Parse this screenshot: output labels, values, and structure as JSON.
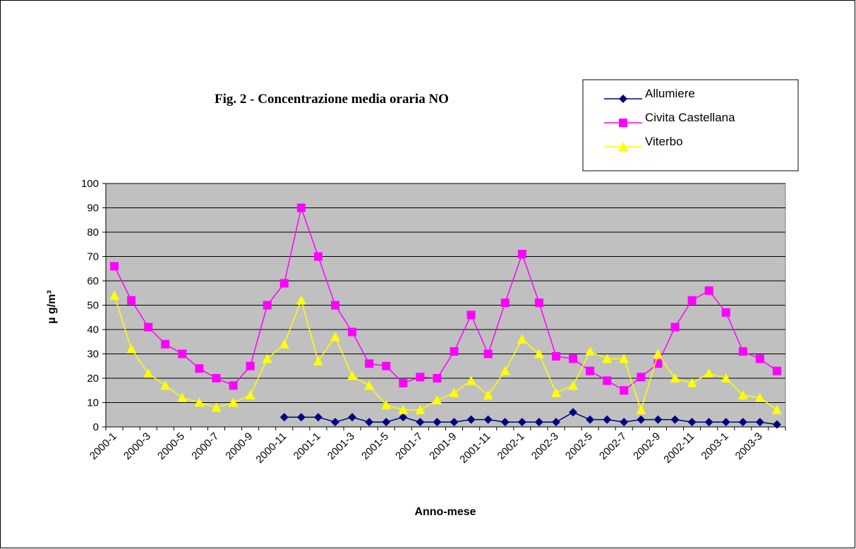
{
  "chart_data": {
    "type": "line",
    "title": "Fig. 2 - Concentrazione media oraria NO",
    "x_label": "Anno-mese",
    "y_label": "µ g/m³",
    "categories": [
      "2000-1",
      null,
      "2000-3",
      null,
      "2000-5",
      null,
      "2000-7",
      null,
      "2000-9",
      null,
      "2000-11",
      null,
      "2001-1",
      null,
      "2001-3",
      null,
      "2001-5",
      null,
      "2001-7",
      null,
      "2001-9",
      null,
      "2001-11",
      null,
      "2002-1",
      null,
      "2002-3",
      null,
      "2002-5",
      null,
      "2002-7",
      null,
      "2002-9",
      null,
      "2002-11",
      null,
      "2003-1",
      null,
      "2003-3",
      null
    ],
    "series": [
      {
        "name": "Allumiere",
        "color": "#000080",
        "marker": "diamond",
        "values": [
          null,
          null,
          null,
          null,
          null,
          null,
          null,
          null,
          null,
          null,
          4,
          4,
          4,
          2,
          4,
          2,
          2,
          4,
          2,
          2,
          2,
          3,
          3,
          2,
          2,
          2,
          2,
          6,
          3,
          3,
          2,
          3,
          3,
          3,
          2,
          2,
          2,
          2,
          2,
          1
        ]
      },
      {
        "name": "Civita Castellana",
        "color": "#ff00ff",
        "marker": "square",
        "values": [
          66,
          52,
          41,
          34,
          30,
          24,
          20,
          17,
          25,
          50,
          59,
          90,
          70,
          50,
          39,
          26,
          25,
          18,
          20.5,
          20,
          31,
          46,
          30,
          51,
          71,
          51,
          29,
          28,
          23,
          19,
          15,
          20.5,
          26,
          41,
          52,
          56,
          47,
          31,
          28,
          23
        ]
      },
      {
        "name": "Viterbo",
        "color": "#ffff00",
        "marker": "triangle",
        "values": [
          54,
          32,
          22,
          17,
          12,
          10,
          8,
          10,
          13,
          28,
          34,
          52,
          27,
          37,
          21,
          17,
          9,
          7,
          7,
          11,
          14,
          19,
          13,
          23,
          36,
          30,
          14,
          17,
          31,
          28,
          28,
          7,
          30,
          20,
          18,
          22,
          20,
          13,
          12,
          7
        ]
      }
    ],
    "ylim": [
      0,
      100
    ],
    "yticks": [
      0,
      10,
      20,
      30,
      40,
      50,
      60,
      70,
      80,
      90,
      100
    ],
    "grid": true
  }
}
